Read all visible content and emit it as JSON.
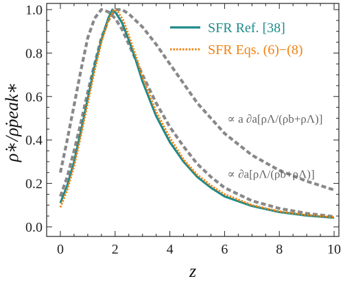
{
  "chart_data": {
    "type": "line",
    "title": "",
    "xlabel": "z",
    "ylabel": "ρ̇∗/ρ̇peak∗",
    "xlim": [
      0,
      10
    ],
    "ylim": [
      0,
      1.0
    ],
    "x_ticks": [
      "0",
      "2",
      "4",
      "6",
      "8",
      "10"
    ],
    "y_ticks": [
      "0.0",
      "0.2",
      "0.4",
      "0.6",
      "0.8",
      "1.0"
    ],
    "grid": false,
    "legend_position": "top-right",
    "series": [
      {
        "name": "SFR Ref. [38]",
        "color": "#1f8a8a",
        "style": "solid",
        "points": [
          [
            0,
            0.11
          ],
          [
            0.25,
            0.19
          ],
          [
            0.5,
            0.3
          ],
          [
            0.75,
            0.44
          ],
          [
            1.0,
            0.59
          ],
          [
            1.25,
            0.74
          ],
          [
            1.5,
            0.86
          ],
          [
            1.75,
            0.96
          ],
          [
            1.9,
            1.0
          ],
          [
            2.0,
            0.99
          ],
          [
            2.25,
            0.94
          ],
          [
            2.5,
            0.86
          ],
          [
            2.75,
            0.77
          ],
          [
            3.0,
            0.67
          ],
          [
            3.5,
            0.51
          ],
          [
            4.0,
            0.39
          ],
          [
            4.5,
            0.3
          ],
          [
            5.0,
            0.23
          ],
          [
            5.5,
            0.18
          ],
          [
            6.0,
            0.14
          ],
          [
            7.0,
            0.096
          ],
          [
            8.0,
            0.068
          ],
          [
            9.0,
            0.052
          ],
          [
            10.0,
            0.042
          ]
        ]
      },
      {
        "name": "SFR Eqs. (6)−(8)",
        "color": "#f0820f",
        "style": "dotted",
        "points": [
          [
            0,
            0.09
          ],
          [
            0.25,
            0.17
          ],
          [
            0.5,
            0.28
          ],
          [
            0.75,
            0.42
          ],
          [
            1.0,
            0.57
          ],
          [
            1.25,
            0.72
          ],
          [
            1.5,
            0.85
          ],
          [
            1.75,
            0.95
          ],
          [
            1.95,
            1.0
          ],
          [
            2.1,
            0.99
          ],
          [
            2.3,
            0.95
          ],
          [
            2.5,
            0.88
          ],
          [
            2.75,
            0.79
          ],
          [
            3.0,
            0.69
          ],
          [
            3.5,
            0.53
          ],
          [
            4.0,
            0.41
          ],
          [
            4.5,
            0.31
          ],
          [
            5.0,
            0.24
          ],
          [
            5.5,
            0.19
          ],
          [
            6.0,
            0.15
          ],
          [
            7.0,
            0.1
          ],
          [
            8.0,
            0.071
          ],
          [
            9.0,
            0.055
          ],
          [
            10.0,
            0.044
          ]
        ]
      },
      {
        "name": "",
        "color": "#888888",
        "style": "dashed",
        "points": [
          [
            0,
            0.25
          ],
          [
            0.25,
            0.4
          ],
          [
            0.5,
            0.56
          ],
          [
            0.75,
            0.72
          ],
          [
            1.0,
            0.87
          ],
          [
            1.25,
            0.96
          ],
          [
            1.5,
            1.0
          ],
          [
            1.75,
            0.99
          ],
          [
            2.0,
            0.96
          ],
          [
            2.25,
            0.91
          ],
          [
            2.5,
            0.84
          ],
          [
            3.0,
            0.7
          ],
          [
            3.5,
            0.57
          ],
          [
            4.0,
            0.46
          ],
          [
            4.5,
            0.37
          ],
          [
            5.0,
            0.29
          ],
          [
            5.5,
            0.23
          ],
          [
            6.0,
            0.18
          ],
          [
            7.0,
            0.12
          ],
          [
            8.0,
            0.085
          ],
          [
            9.0,
            0.062
          ],
          [
            10.0,
            0.047
          ]
        ]
      },
      {
        "name": "",
        "color": "#888888",
        "style": "dashed",
        "points": [
          [
            0,
            0.14
          ],
          [
            0.25,
            0.23
          ],
          [
            0.5,
            0.35
          ],
          [
            0.75,
            0.48
          ],
          [
            1.0,
            0.62
          ],
          [
            1.25,
            0.75
          ],
          [
            1.5,
            0.87
          ],
          [
            1.75,
            0.95
          ],
          [
            2.0,
            1.0
          ],
          [
            2.25,
            1.0
          ],
          [
            2.5,
            0.98
          ],
          [
            3.0,
            0.92
          ],
          [
            3.5,
            0.84
          ],
          [
            4.0,
            0.75
          ],
          [
            4.5,
            0.66
          ],
          [
            5.0,
            0.57
          ],
          [
            5.5,
            0.5
          ],
          [
            6.0,
            0.43
          ],
          [
            7.0,
            0.33
          ],
          [
            8.0,
            0.26
          ],
          [
            9.0,
            0.21
          ],
          [
            10.0,
            0.17
          ]
        ]
      }
    ],
    "annotations": [
      {
        "text": "∝ a ∂a[ρΛ/(ρb+ρΛ)]",
        "x": 6.1,
        "y": 0.48
      },
      {
        "text": "∝ ∂a[ρΛ/(ρb+ρΛ)]",
        "x": 6.1,
        "y": 0.225
      }
    ]
  }
}
